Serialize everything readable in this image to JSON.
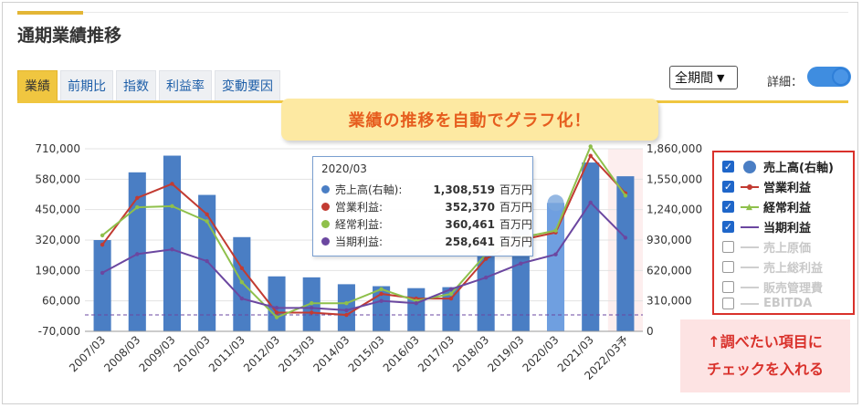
{
  "page_title": "通期業績推移",
  "tabs": [
    {
      "label": "業績",
      "active": true
    },
    {
      "label": "前期比",
      "active": false
    },
    {
      "label": "指数",
      "active": false
    },
    {
      "label": "利益率",
      "active": false
    },
    {
      "label": "変動要因",
      "active": false
    }
  ],
  "period_select": {
    "value": "全期間"
  },
  "detail_toggle": {
    "label": "詳細：",
    "on": true
  },
  "callout": "業績の推移を自動でグラフ化！",
  "tooltip": {
    "date": "2020/03",
    "rows": [
      {
        "name": "売上高(右軸):",
        "value": "1,308,519",
        "unit": "百万円",
        "color": "#4a7ec4"
      },
      {
        "name": "営業利益:",
        "value": "352,370",
        "unit": "百万円",
        "color": "#c23b32"
      },
      {
        "name": "経常利益:",
        "value": "360,461",
        "unit": "百万円",
        "color": "#8fc04b"
      },
      {
        "name": "当期利益:",
        "value": "258,641",
        "unit": "百万円",
        "color": "#6b47a0"
      }
    ]
  },
  "legend": [
    {
      "label": "売上高(右軸)",
      "checked": true,
      "color": "#4a7ec4",
      "kind": "dot"
    },
    {
      "label": "営業利益",
      "checked": true,
      "color": "#c23b32",
      "kind": "line"
    },
    {
      "label": "経常利益",
      "checked": true,
      "color": "#8fc04b",
      "kind": "line"
    },
    {
      "label": "当期利益",
      "checked": true,
      "color": "#6b47a0",
      "kind": "line"
    },
    {
      "label": "売上原価",
      "checked": false,
      "color": "#cfcfcf",
      "kind": "line"
    },
    {
      "label": "売上総利益",
      "checked": false,
      "color": "#cfcfcf",
      "kind": "line"
    },
    {
      "label": "販売管理費",
      "checked": false,
      "color": "#cfcfcf",
      "kind": "line"
    },
    {
      "label": "EBITDA",
      "checked": false,
      "color": "#cfcfcf",
      "kind": "line"
    }
  ],
  "note": {
    "line1": "↑調べたい項目に",
    "line2": "チェックを入れる"
  },
  "chart_data": {
    "type": "bar",
    "categories": [
      "2007/03",
      "2008/03",
      "2009/03",
      "2010/03",
      "2011/03",
      "2012/03",
      "2013/03",
      "2014/03",
      "2015/03",
      "2016/03",
      "2017/03",
      "2018/03",
      "2019/03",
      "2020/03",
      "2021/03",
      "2022/03予"
    ],
    "left_axis": {
      "ticks": [
        "710,000",
        "580,000",
        "450,000",
        "320,000",
        "190,000",
        "60,000",
        "-70,000"
      ],
      "min": -70000,
      "max": 710000,
      "zero_line": 0
    },
    "right_axis": {
      "ticks": [
        "1,860,000",
        "1,550,000",
        "1,240,000",
        "930,000",
        "620,000",
        "310,000",
        "0"
      ],
      "min": 0,
      "max": 1860000
    },
    "series": [
      {
        "name": "売上高(右軸)",
        "type": "bar",
        "axis": "right",
        "color": "#4a7ec4",
        "highlight_color": "#6f9fe0",
        "values": [
          930000,
          1620000,
          1790000,
          1390000,
          960000,
          560000,
          550000,
          480000,
          460000,
          440000,
          450000,
          860000,
          1100000,
          1308519,
          1720000,
          1580000
        ]
      },
      {
        "name": "営業利益",
        "type": "line",
        "axis": "left",
        "color": "#c23b32",
        "values": [
          300000,
          500000,
          560000,
          430000,
          200000,
          10000,
          10000,
          0,
          90000,
          70000,
          70000,
          240000,
          320000,
          352370,
          680000,
          520000
        ]
      },
      {
        "name": "経常利益",
        "type": "line",
        "axis": "left",
        "color": "#8fc04b",
        "values": [
          340000,
          460000,
          465000,
          400000,
          140000,
          -10000,
          50000,
          50000,
          110000,
          60000,
          90000,
          260000,
          330000,
          360461,
          720000,
          510000
        ]
      },
      {
        "name": "当期利益",
        "type": "line",
        "axis": "left",
        "color": "#6b47a0",
        "values": [
          180000,
          260000,
          280000,
          230000,
          70000,
          30000,
          30000,
          20000,
          60000,
          50000,
          110000,
          160000,
          220000,
          258641,
          480000,
          330000
        ]
      }
    ],
    "highlight_category": "2020/03",
    "forecast_category": "2022/03予"
  }
}
